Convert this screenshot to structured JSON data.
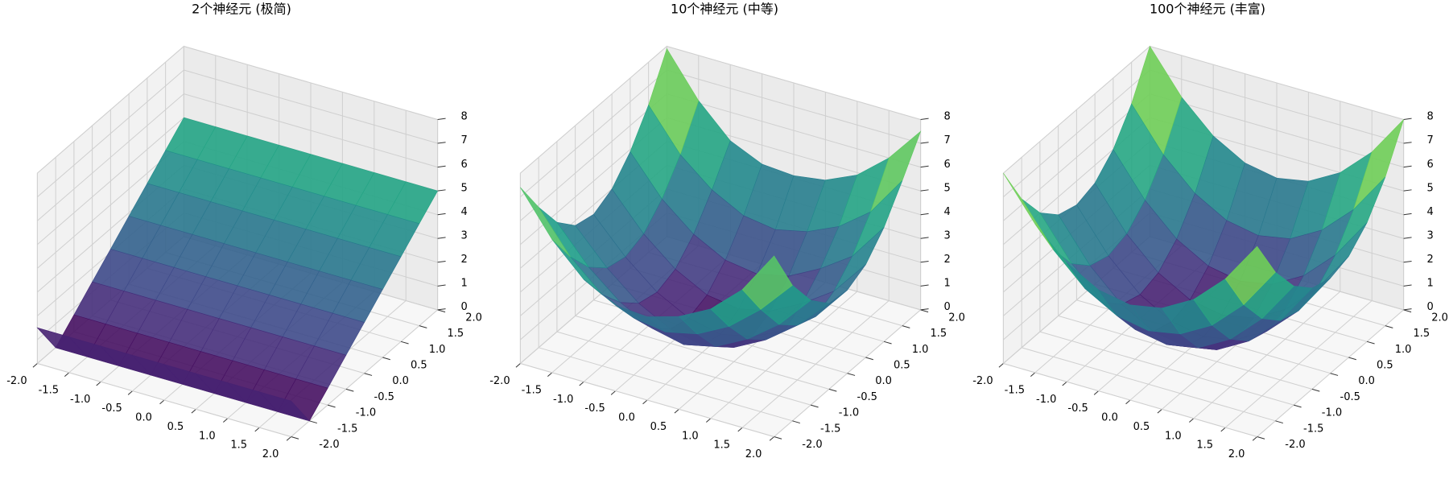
{
  "chart_data": [
    {
      "type": "surface",
      "title": "2个神经元 (极简)",
      "colormap": "viridis",
      "x": [
        -2,
        -1.5,
        -1,
        -0.5,
        0,
        0.5,
        1,
        1.5,
        2
      ],
      "y": [
        -2,
        -1.5,
        -1,
        -0.5,
        0,
        0.5,
        1,
        1.5,
        2
      ],
      "z": [
        [
          1.5,
          1.5,
          1.5,
          1.5,
          1.5,
          1.5,
          1.5,
          1.5,
          1.5
        ],
        [
          0,
          0,
          0,
          0,
          0,
          0,
          0,
          0,
          0
        ],
        [
          0.71,
          0.71,
          0.71,
          0.71,
          0.71,
          0.71,
          0.71,
          0.71,
          0.71
        ],
        [
          1.43,
          1.43,
          1.43,
          1.43,
          1.43,
          1.43,
          1.43,
          1.43,
          1.43
        ],
        [
          2.14,
          2.14,
          2.14,
          2.14,
          2.14,
          2.14,
          2.14,
          2.14,
          2.14
        ],
        [
          2.86,
          2.86,
          2.86,
          2.86,
          2.86,
          2.86,
          2.86,
          2.86,
          2.86
        ],
        [
          3.57,
          3.57,
          3.57,
          3.57,
          3.57,
          3.57,
          3.57,
          3.57,
          3.57
        ],
        [
          4.29,
          4.29,
          4.29,
          4.29,
          4.29,
          4.29,
          4.29,
          4.29,
          4.29
        ],
        [
          5,
          5,
          5,
          5,
          5,
          5,
          5,
          5,
          5
        ]
      ],
      "xlim": [
        -2,
        2
      ],
      "ylim": [
        -2,
        2
      ],
      "zlim": [
        0,
        8
      ],
      "xticks": [
        {
          "value": -2,
          "label": "-2.0"
        },
        -1.5,
        {
          "value": -1,
          "label": "-1.0"
        },
        -0.5,
        {
          "value": 0,
          "label": "0.0"
        },
        0.5,
        {
          "value": 1,
          "label": "1.0"
        },
        1.5,
        {
          "value": 2,
          "label": "2.0"
        }
      ],
      "yticks": [
        {
          "value": -2,
          "label": "-2.0"
        },
        -1.5,
        {
          "value": -1,
          "label": "-1.0"
        },
        -0.5,
        {
          "value": 0,
          "label": "0.0"
        },
        0.5,
        {
          "value": 1,
          "label": "1.0"
        },
        1.5,
        {
          "value": 2,
          "label": "2.0"
        }
      ],
      "zticks": [
        0,
        1,
        2,
        3,
        4,
        5,
        6,
        7,
        8
      ]
    },
    {
      "type": "surface",
      "title": "10个神经元 (中等)",
      "colormap": "viridis",
      "x": [
        -2,
        -1.5,
        -1,
        -0.5,
        0,
        0.5,
        1,
        1.5,
        2
      ],
      "y": [
        -2,
        -1.5,
        -1,
        -0.5,
        0,
        0.5,
        1,
        1.5,
        2
      ],
      "z": [
        [
          7.4,
          5.6,
          4.3,
          3.6,
          3.5,
          3.9,
          4.6,
          5.8,
          7.6
        ],
        [
          5.9,
          4.2,
          3.0,
          2.4,
          2.2,
          2.5,
          3.2,
          4.3,
          5.7
        ],
        [
          4.6,
          3.1,
          2.0,
          1.3,
          1.0,
          1.3,
          2.0,
          3.0,
          4.4
        ],
        [
          3.8,
          2.4,
          1.3,
          0.6,
          0.3,
          0.6,
          1.3,
          2.3,
          3.6
        ],
        [
          3.6,
          2.2,
          1.1,
          0.4,
          0.1,
          0.4,
          1.0,
          2.0,
          3.5
        ],
        [
          4.0,
          2.5,
          1.4,
          0.7,
          0.5,
          0.8,
          1.5,
          2.4,
          3.9
        ],
        [
          4.9,
          3.3,
          2.2,
          1.5,
          1.3,
          1.6,
          2.3,
          3.2,
          4.8
        ],
        [
          6.2,
          4.5,
          3.4,
          2.7,
          2.5,
          2.8,
          3.4,
          4.4,
          6.1
        ],
        [
          7.9,
          6.1,
          4.8,
          4.2,
          4.1,
          4.3,
          4.9,
          6.0,
          7.5
        ]
      ],
      "xlim": [
        -2,
        2
      ],
      "ylim": [
        -2,
        2
      ],
      "zlim": [
        0,
        8
      ],
      "xticks": [
        {
          "value": -2,
          "label": "-2.0"
        },
        -1.5,
        {
          "value": -1,
          "label": "-1.0"
        },
        -0.5,
        {
          "value": 0,
          "label": "0.0"
        },
        0.5,
        {
          "value": 1,
          "label": "1.0"
        },
        1.5,
        {
          "value": 2,
          "label": "2.0"
        }
      ],
      "yticks": [
        {
          "value": -2,
          "label": "-2.0"
        },
        -1.5,
        {
          "value": -1,
          "label": "-1.0"
        },
        -0.5,
        {
          "value": 0,
          "label": "0.0"
        },
        0.5,
        {
          "value": 1,
          "label": "1.0"
        },
        1.5,
        {
          "value": 2,
          "label": "2.0"
        }
      ],
      "zticks": [
        0,
        1,
        2,
        3,
        4,
        5,
        6,
        7,
        8
      ]
    },
    {
      "type": "surface",
      "title": "100个神经元 (丰富)",
      "colormap": "viridis",
      "x": [
        -2,
        -1.5,
        -1,
        -0.5,
        0,
        0.5,
        1,
        1.5,
        2
      ],
      "y": [
        -2,
        -1.5,
        -1,
        -0.5,
        0,
        0.5,
        1,
        1.5,
        2
      ],
      "z": [
        [
          8,
          6.25,
          5,
          4.25,
          4,
          4.25,
          5,
          6.25,
          8
        ],
        [
          6.25,
          4.5,
          3.25,
          2.5,
          2.25,
          2.5,
          3.25,
          4.5,
          6.25
        ],
        [
          5,
          3.25,
          2,
          1.25,
          1,
          1.25,
          2,
          3.25,
          5
        ],
        [
          4.25,
          2.5,
          1.25,
          0.5,
          0.25,
          0.5,
          1.25,
          2.5,
          4.25
        ],
        [
          4,
          2.25,
          1,
          0.25,
          0,
          0.25,
          1,
          2.25,
          4
        ],
        [
          4.25,
          2.5,
          1.25,
          0.5,
          0.25,
          0.5,
          1.25,
          2.5,
          4.25
        ],
        [
          5,
          3.25,
          2,
          1.25,
          1,
          1.25,
          2,
          3.25,
          5
        ],
        [
          6.25,
          4.5,
          3.25,
          2.5,
          2.25,
          2.5,
          3.25,
          4.5,
          6.25
        ],
        [
          8,
          6.25,
          5,
          4.25,
          4,
          4.25,
          5,
          6.25,
          8
        ]
      ],
      "xlim": [
        -2,
        2
      ],
      "ylim": [
        -2,
        2
      ],
      "zlim": [
        0,
        8
      ],
      "xticks": [
        {
          "value": -2,
          "label": "-2.0"
        },
        -1.5,
        {
          "value": -1,
          "label": "-1.0"
        },
        -0.5,
        {
          "value": 0,
          "label": "0.0"
        },
        0.5,
        {
          "value": 1,
          "label": "1.0"
        },
        1.5,
        {
          "value": 2,
          "label": "2.0"
        }
      ],
      "yticks": [
        {
          "value": -2,
          "label": "-2.0"
        },
        -1.5,
        {
          "value": -1,
          "label": "-1.0"
        },
        -0.5,
        {
          "value": 0,
          "label": "0.0"
        },
        0.5,
        {
          "value": 1,
          "label": "1.0"
        },
        1.5,
        {
          "value": 2,
          "label": "2.0"
        }
      ],
      "zticks": [
        0,
        1,
        2,
        3,
        4,
        5,
        6,
        7,
        8
      ]
    }
  ]
}
